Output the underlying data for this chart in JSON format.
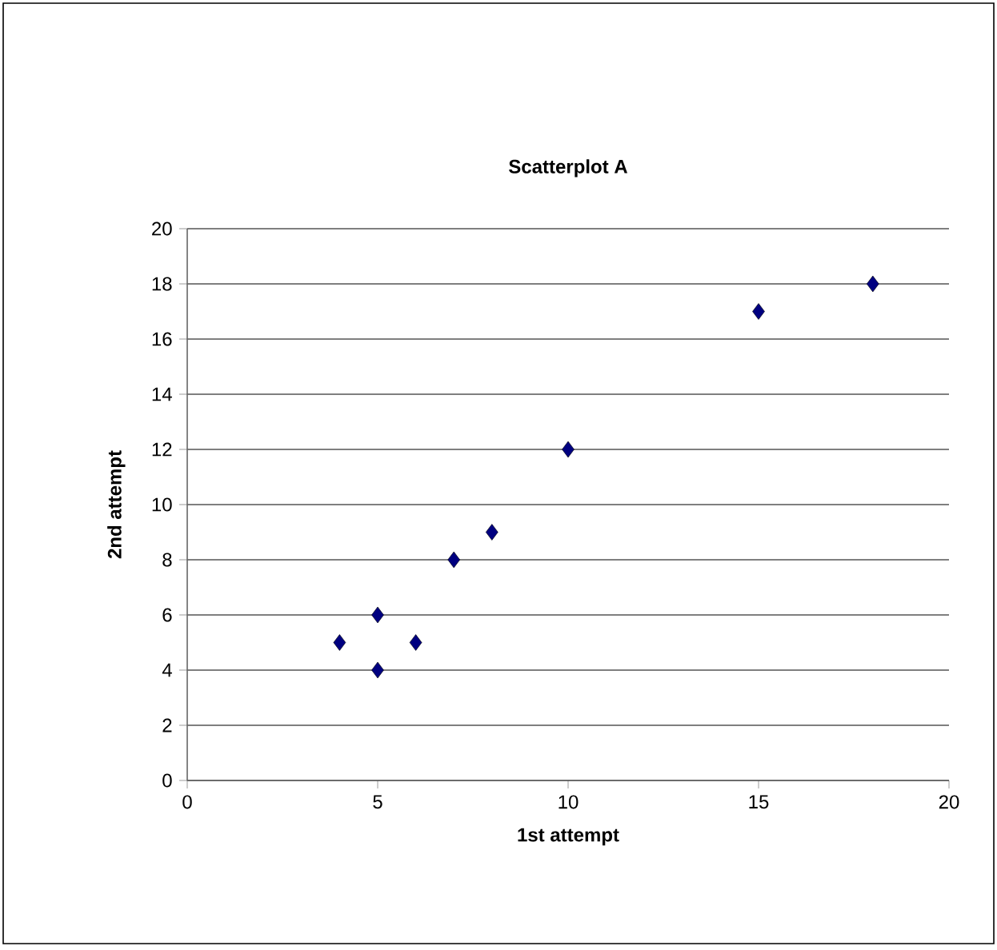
{
  "chart_data": {
    "type": "scatter",
    "title": "Scatterplot A",
    "xlabel": "1st attempt",
    "ylabel": "2nd attempt",
    "x": [
      4,
      5,
      5,
      6,
      7,
      8,
      10,
      15,
      18
    ],
    "values": [
      5,
      6,
      4,
      5,
      8,
      9,
      12,
      17,
      18
    ],
    "color": "#000080",
    "marker": "diamond",
    "xlim": [
      0,
      20
    ],
    "xticks": [
      0,
      5,
      10,
      15,
      20
    ],
    "ylim": [
      0,
      20
    ],
    "yticks": [
      0,
      2,
      4,
      6,
      8,
      10,
      12,
      14,
      16,
      18,
      20
    ],
    "grid": "y"
  }
}
